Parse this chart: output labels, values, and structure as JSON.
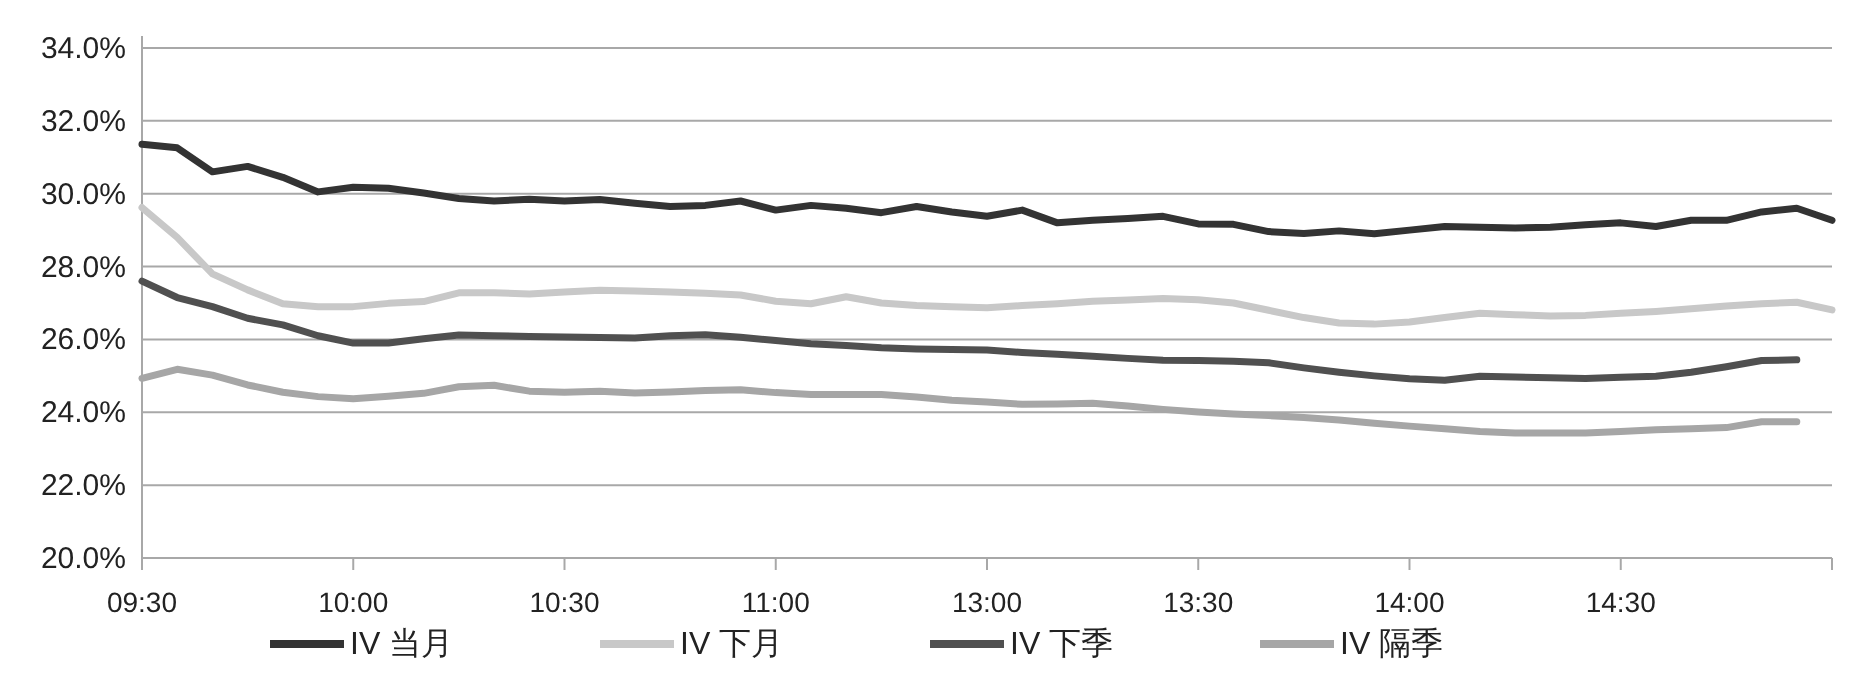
{
  "chart_data": {
    "type": "line",
    "categories": [
      "09:30",
      null,
      null,
      null,
      null,
      null,
      "10:00",
      null,
      null,
      null,
      null,
      null,
      "10:30",
      null,
      null,
      null,
      null,
      null,
      "11:00",
      null,
      null,
      null,
      null,
      null,
      "13:00",
      null,
      null,
      null,
      null,
      null,
      "13:30",
      null,
      null,
      null,
      null,
      null,
      "14:00",
      null,
      null,
      null,
      null,
      null,
      "14:30",
      null,
      null,
      null,
      null,
      null,
      null
    ],
    "ylim": [
      20,
      34
    ],
    "yticks": [
      {
        "value": 20,
        "label": "20.0%"
      },
      {
        "value": 22,
        "label": "22.0%"
      },
      {
        "value": 24,
        "label": "24.0%"
      },
      {
        "value": 26,
        "label": "26.0%"
      },
      {
        "value": 28,
        "label": "28.0%"
      },
      {
        "value": 30,
        "label": "30.0%"
      },
      {
        "value": 32,
        "label": "32.0%"
      },
      {
        "value": 34,
        "label": "34.0%"
      }
    ],
    "grid": "y",
    "legend": "bottom",
    "marker": "none",
    "line_style": "solid",
    "series": [
      {
        "name": "IV 当月",
        "color": "#333333",
        "values": [
          31.36,
          31.26,
          30.6,
          30.75,
          30.45,
          30.05,
          30.18,
          30.15,
          30.02,
          29.87,
          29.8,
          29.85,
          29.8,
          29.84,
          29.74,
          29.65,
          29.68,
          29.8,
          29.55,
          29.68,
          29.6,
          29.48,
          29.65,
          29.5,
          29.38,
          29.55,
          29.2,
          29.27,
          29.32,
          29.38,
          29.17,
          29.16,
          28.96,
          28.91,
          28.98,
          28.9,
          29.0,
          29.1,
          29.08,
          29.06,
          29.08,
          29.15,
          29.2,
          29.1,
          29.27,
          29.27,
          29.5,
          29.6,
          29.27
        ]
      },
      {
        "name": "IV 下月",
        "color": "#c8c8c8",
        "values": [
          29.62,
          28.8,
          27.8,
          27.36,
          26.98,
          26.9,
          26.9,
          26.99,
          27.04,
          27.28,
          27.28,
          27.25,
          27.3,
          27.35,
          27.33,
          27.3,
          27.27,
          27.22,
          27.05,
          26.98,
          27.17,
          27.0,
          26.93,
          26.9,
          26.87,
          26.93,
          26.98,
          27.05,
          27.08,
          27.12,
          27.09,
          27.0,
          26.8,
          26.6,
          26.45,
          26.42,
          26.48,
          26.6,
          26.72,
          26.68,
          26.64,
          26.66,
          26.72,
          26.77,
          26.84,
          26.92,
          26.98,
          27.02,
          26.81
        ]
      },
      {
        "name": "IV 下季",
        "color": "#505050",
        "values": [
          27.6,
          27.15,
          26.9,
          26.58,
          26.4,
          26.1,
          25.9,
          25.9,
          26.02,
          26.12,
          26.1,
          26.08,
          26.07,
          26.05,
          26.04,
          26.1,
          26.13,
          26.06,
          25.97,
          25.88,
          25.83,
          25.77,
          25.74,
          25.72,
          25.71,
          25.64,
          25.59,
          25.54,
          25.48,
          25.43,
          25.42,
          25.4,
          25.36,
          25.22,
          25.1,
          25.0,
          24.92,
          24.88,
          24.99,
          24.97,
          24.95,
          24.93,
          24.96,
          24.99,
          25.1,
          25.25,
          25.42,
          25.44,
          null
        ]
      },
      {
        "name": "IV 隔季",
        "color": "#a6a6a6",
        "values": [
          24.93,
          25.18,
          25.02,
          24.75,
          24.55,
          24.43,
          24.37,
          24.44,
          24.52,
          24.7,
          24.74,
          24.58,
          24.55,
          24.58,
          24.53,
          24.56,
          24.6,
          24.62,
          24.54,
          24.49,
          24.49,
          24.49,
          24.42,
          24.33,
          24.28,
          24.22,
          24.23,
          24.25,
          24.17,
          24.08,
          24.01,
          23.95,
          23.91,
          23.86,
          23.79,
          23.7,
          23.62,
          23.55,
          23.47,
          23.43,
          23.43,
          23.43,
          23.47,
          23.52,
          23.55,
          23.58,
          23.74,
          23.74,
          null
        ]
      }
    ]
  }
}
